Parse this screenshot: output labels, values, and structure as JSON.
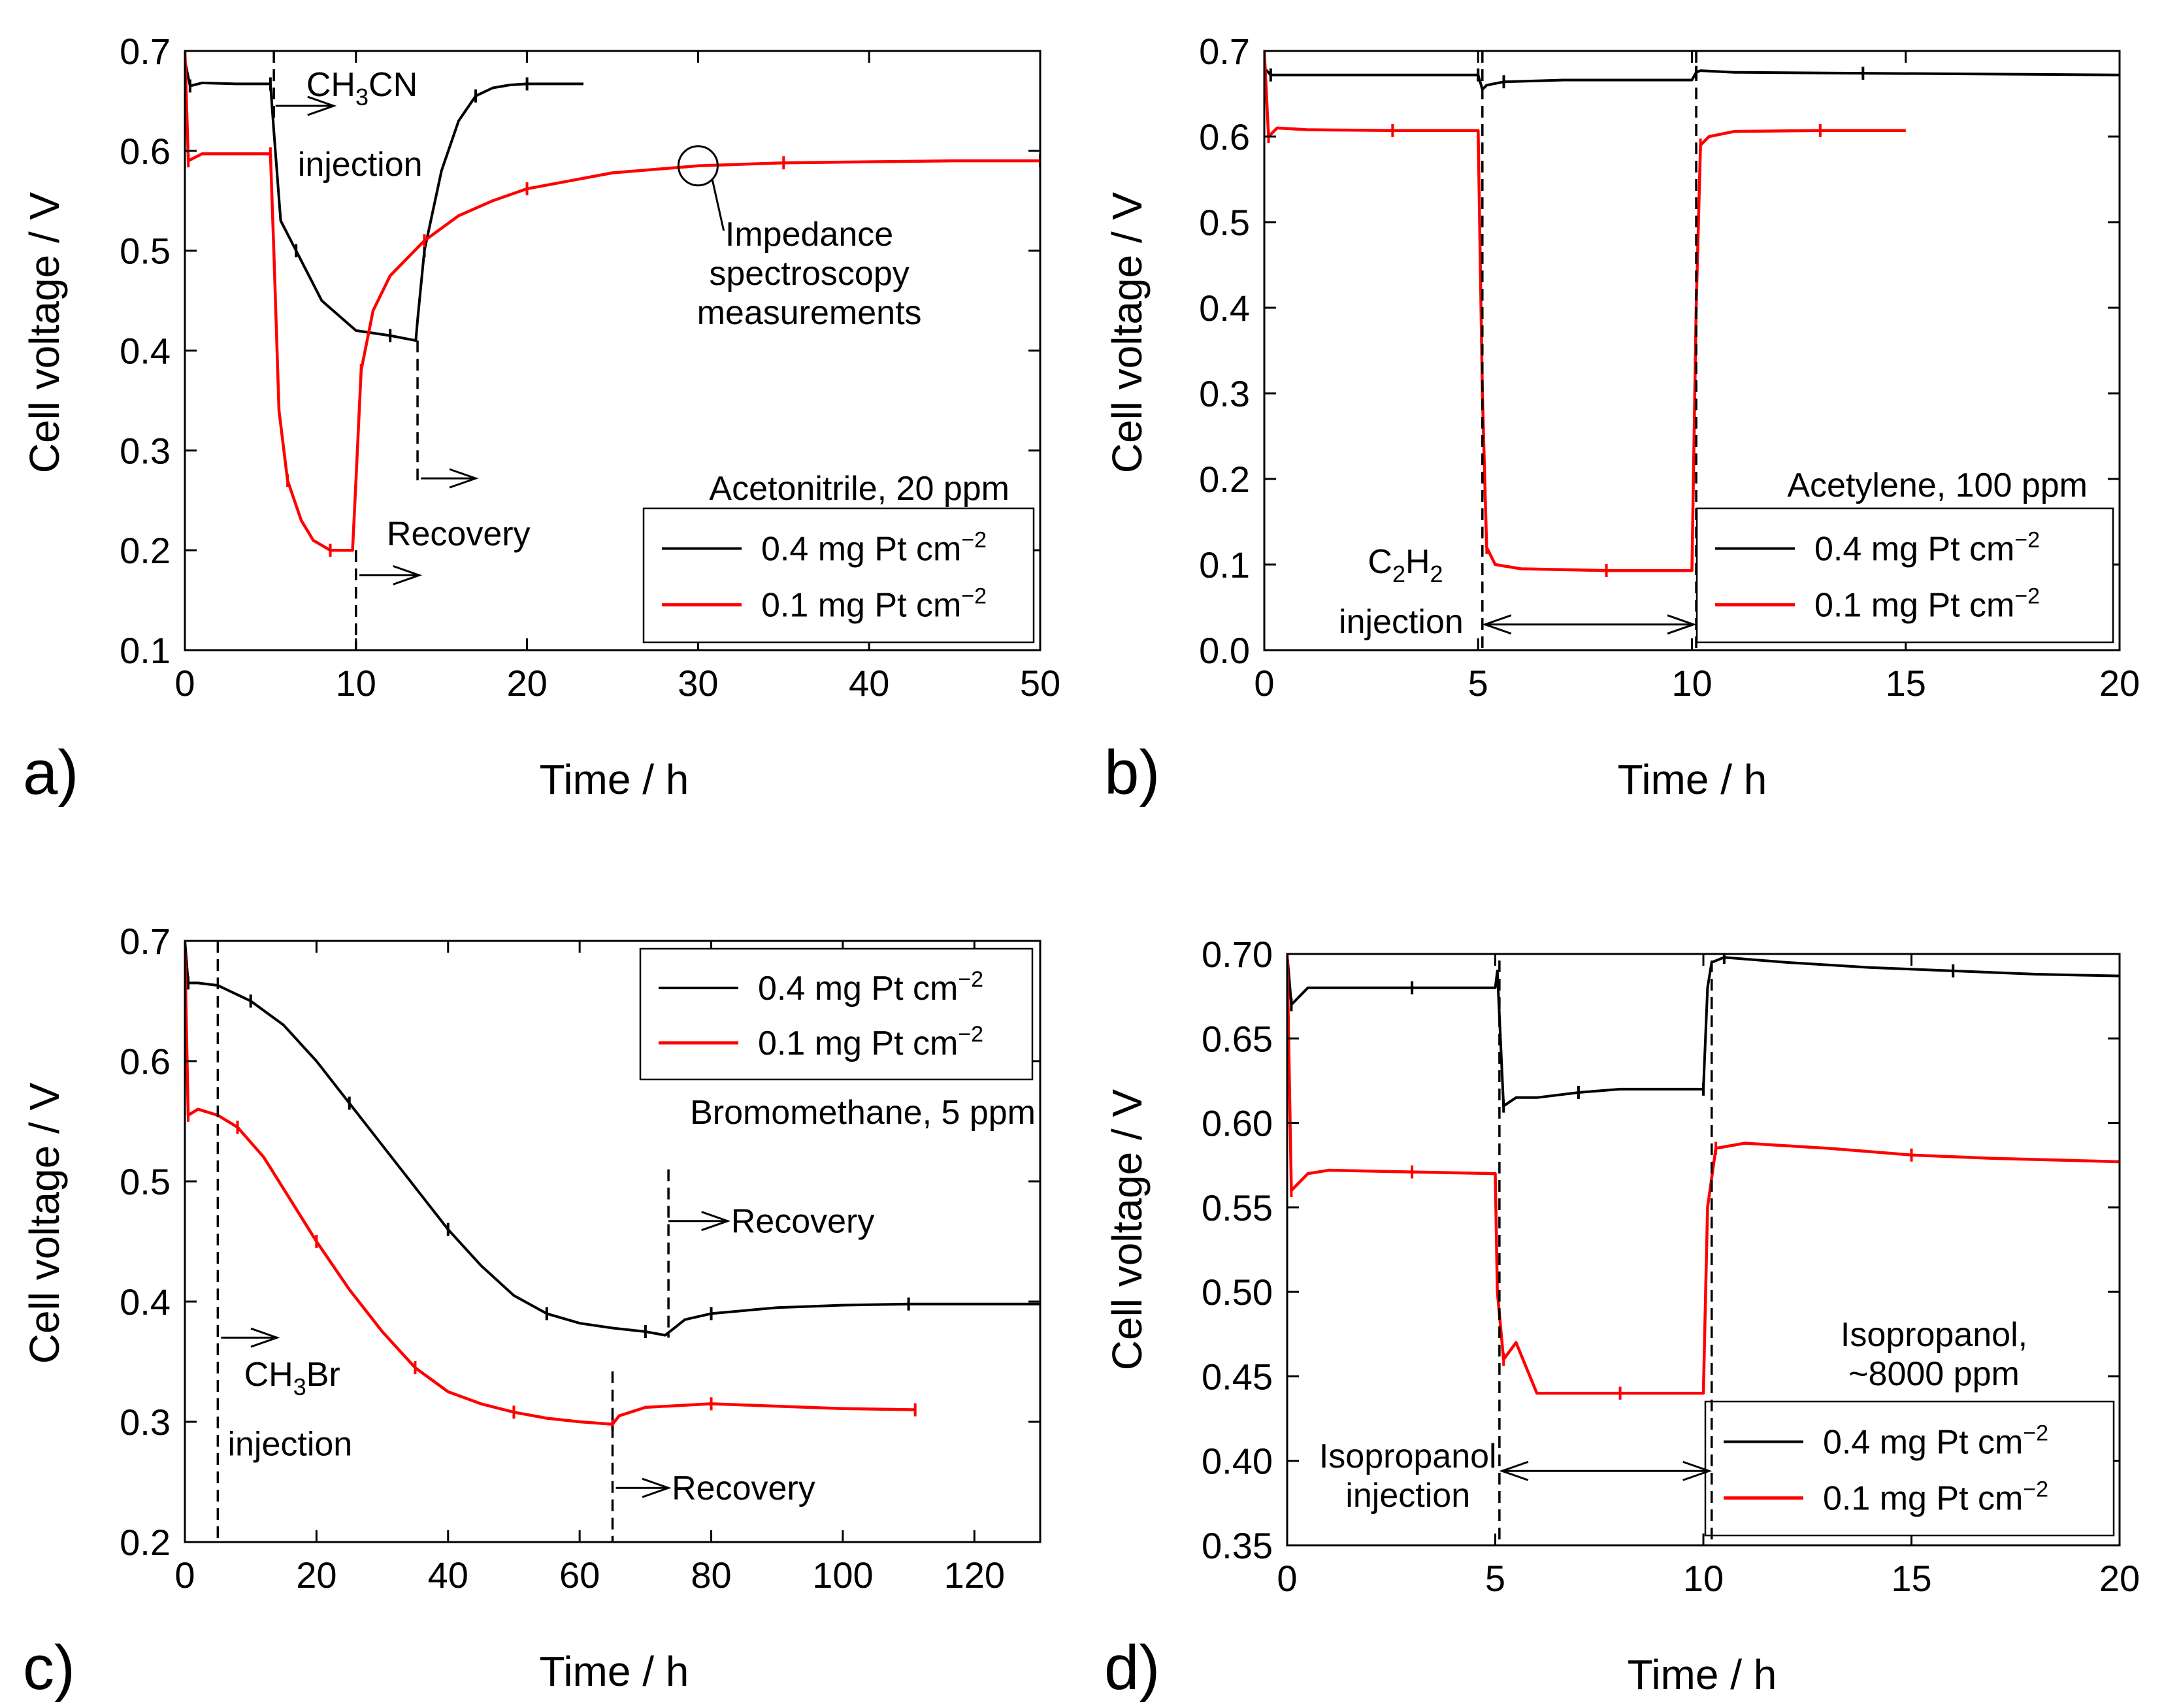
{
  "colors": {
    "black_series": "#000000",
    "red_series": "#ff0000"
  },
  "chart_data": [
    {
      "type": "line",
      "panel": "a)",
      "xlabel": "Time / h",
      "ylabel": "Cell voltage / V",
      "xlim": [
        0,
        50
      ],
      "ylim": [
        0.1,
        0.7
      ],
      "xticks": [
        0,
        10,
        20,
        30,
        40,
        50
      ],
      "xtick_labels": [
        "0",
        "10",
        "20",
        "30",
        "40",
        "50"
      ],
      "yticks": [
        0.1,
        0.2,
        0.3,
        0.4,
        0.5,
        0.6,
        0.7
      ],
      "ytick_labels": [
        "0.1",
        "0.2",
        "0.3",
        "0.4",
        "0.5",
        "0.6",
        "0.7"
      ],
      "title": "Acetonitrile, 20 ppm",
      "legend": {
        "position": "bottom-right",
        "entries": [
          {
            "main": "0.4 mg Pt cm",
            "sup": "−2",
            "color": "#000000"
          },
          {
            "main": "0.1 mg Pt cm",
            "sup": "−2",
            "color": "#ff0000"
          }
        ]
      },
      "series": [
        {
          "name": "0.4 mg Pt cm−2",
          "color": "#000000",
          "x": [
            0,
            0.3,
            1,
            3,
            5,
            5.2,
            5.6,
            6.5,
            8,
            10,
            12,
            13.5,
            13.6,
            14,
            15,
            16,
            17,
            18,
            19,
            20,
            22,
            23.3
          ],
          "y": [
            0.69,
            0.665,
            0.668,
            0.667,
            0.667,
            0.62,
            0.53,
            0.5,
            0.45,
            0.42,
            0.415,
            0.41,
            0.43,
            0.5,
            0.58,
            0.63,
            0.655,
            0.663,
            0.666,
            0.667,
            0.667,
            0.667
          ]
        },
        {
          "name": "0.1 mg Pt cm−2",
          "color": "#ff0000",
          "x": [
            0,
            0.2,
            1,
            3,
            5,
            5.2,
            5.5,
            6,
            6.8,
            7.5,
            8.5,
            9.8,
            10,
            10.3,
            11,
            12,
            14,
            16,
            18,
            20,
            25,
            30,
            35,
            40,
            45,
            50
          ],
          "y": [
            0.7,
            0.59,
            0.597,
            0.597,
            0.597,
            0.5,
            0.34,
            0.27,
            0.23,
            0.21,
            0.2,
            0.2,
            0.27,
            0.38,
            0.44,
            0.475,
            0.51,
            0.535,
            0.55,
            0.562,
            0.578,
            0.585,
            0.588,
            0.589,
            0.59,
            0.59
          ]
        }
      ],
      "annotations": {
        "injection_sub": "3",
        "injection_pre": "CH",
        "injection_post": "CN",
        "injection_word": "injection",
        "recovery": "Recovery",
        "impedance_lines": [
          "Impedance",
          "spectroscopy",
          "measurements"
        ]
      }
    },
    {
      "type": "line",
      "panel": "b)",
      "xlabel": "Time / h",
      "ylabel": "Cell voltage / V",
      "xlim": [
        0,
        20
      ],
      "ylim": [
        0.0,
        0.7
      ],
      "xticks": [
        0,
        5,
        10,
        15,
        20
      ],
      "xtick_labels": [
        "0",
        "5",
        "10",
        "15",
        "20"
      ],
      "yticks": [
        0.0,
        0.1,
        0.2,
        0.3,
        0.4,
        0.5,
        0.6,
        0.7
      ],
      "ytick_labels": [
        "0.0",
        "0.1",
        "0.2",
        "0.3",
        "0.4",
        "0.5",
        "0.6",
        "0.7"
      ],
      "title": "Acetylene, 100 ppm",
      "legend": {
        "position": "bottom-right",
        "entries": [
          {
            "main": "0.4 mg Pt cm",
            "sup": "−2",
            "color": "#000000"
          },
          {
            "main": "0.1 mg Pt cm",
            "sup": "−2",
            "color": "#ff0000"
          }
        ]
      },
      "series": [
        {
          "name": "0.4 mg Pt cm−2",
          "color": "#000000",
          "x": [
            0,
            0.15,
            1,
            3,
            5,
            5.1,
            5.2,
            5.6,
            7,
            10,
            10.1,
            10.2,
            11,
            14,
            17,
            20
          ],
          "y": [
            0.68,
            0.672,
            0.672,
            0.672,
            0.672,
            0.655,
            0.66,
            0.664,
            0.666,
            0.666,
            0.675,
            0.677,
            0.675,
            0.674,
            0.673,
            0.672
          ]
        },
        {
          "name": "0.1 mg Pt cm−2",
          "color": "#ff0000",
          "x": [
            0,
            0.1,
            0.3,
            1,
            3,
            5,
            5.1,
            5.2,
            5.4,
            6,
            8,
            10,
            10.1,
            10.2,
            10.4,
            11,
            13,
            15
          ],
          "y": [
            0.7,
            0.6,
            0.61,
            0.608,
            0.607,
            0.607,
            0.3,
            0.12,
            0.1,
            0.095,
            0.093,
            0.093,
            0.4,
            0.59,
            0.6,
            0.606,
            0.607,
            0.607
          ]
        }
      ],
      "annotations": {
        "injection_pre": "C",
        "injection_sub1": "2",
        "injection_mid": "H",
        "injection_sub2": "2",
        "injection_word": "injection"
      }
    },
    {
      "type": "line",
      "panel": "c)",
      "xlabel": "Time / h",
      "ylabel": "Cell voltage / V",
      "xlim": [
        0,
        130
      ],
      "ylim": [
        0.2,
        0.7
      ],
      "xticks": [
        0,
        20,
        40,
        60,
        80,
        100,
        120
      ],
      "xtick_labels": [
        "0",
        "20",
        "40",
        "60",
        "80",
        "100",
        "120"
      ],
      "yticks": [
        0.2,
        0.3,
        0.4,
        0.5,
        0.6,
        0.7
      ],
      "ytick_labels": [
        "0.2",
        "0.3",
        "0.4",
        "0.5",
        "0.6",
        "0.7"
      ],
      "title": "Bromomethane, 5 ppm",
      "legend": {
        "position": "top-right",
        "entries": [
          {
            "main": "0.4 mg Pt cm",
            "sup": "−2",
            "color": "#000000"
          },
          {
            "main": "0.1 mg Pt cm",
            "sup": "−2",
            "color": "#ff0000"
          }
        ]
      },
      "series": [
        {
          "name": "0.4 mg Pt cm−2",
          "color": "#000000",
          "x": [
            0,
            0.5,
            2,
            5,
            10,
            15,
            20,
            25,
            30,
            35,
            40,
            45,
            50,
            55,
            60,
            65,
            70,
            73,
            76,
            80,
            90,
            100,
            110,
            120,
            130
          ],
          "y": [
            0.7,
            0.665,
            0.665,
            0.663,
            0.65,
            0.63,
            0.6,
            0.565,
            0.53,
            0.495,
            0.46,
            0.43,
            0.405,
            0.39,
            0.382,
            0.378,
            0.375,
            0.372,
            0.385,
            0.39,
            0.395,
            0.397,
            0.398,
            0.398,
            0.398
          ]
        },
        {
          "name": "0.1 mg Pt cm−2",
          "color": "#ff0000",
          "x": [
            0,
            0.5,
            2,
            5,
            8,
            12,
            16,
            20,
            25,
            30,
            35,
            40,
            45,
            50,
            55,
            60,
            65,
            66,
            70,
            80,
            90,
            100,
            111
          ],
          "y": [
            0.69,
            0.555,
            0.56,
            0.555,
            0.545,
            0.52,
            0.485,
            0.45,
            0.41,
            0.375,
            0.345,
            0.325,
            0.315,
            0.308,
            0.303,
            0.3,
            0.298,
            0.305,
            0.312,
            0.315,
            0.313,
            0.311,
            0.31
          ]
        }
      ],
      "annotations": {
        "injection_pre": "CH",
        "injection_sub": "3",
        "injection_post": "Br",
        "injection_word": "injection",
        "recovery1": "Recovery",
        "recovery2": "Recovery"
      }
    },
    {
      "type": "line",
      "panel": "d)",
      "xlabel": "Time / h",
      "ylabel": "Cell voltage / V",
      "xlim": [
        0,
        20
      ],
      "ylim": [
        0.35,
        0.7
      ],
      "xticks": [
        0,
        5,
        10,
        15,
        20
      ],
      "xtick_labels": [
        "0",
        "5",
        "10",
        "15",
        "20"
      ],
      "yticks": [
        0.35,
        0.4,
        0.45,
        0.5,
        0.55,
        0.6,
        0.65,
        0.7
      ],
      "ytick_labels": [
        "0.35",
        "0.40",
        "0.45",
        "0.50",
        "0.55",
        "0.60",
        "0.65",
        "0.70"
      ],
      "title_lines": [
        "Isopropanol,",
        "~8000 ppm"
      ],
      "legend": {
        "position": "bottom-right",
        "entries": [
          {
            "main": "0.4 mg Pt cm",
            "sup": "−2",
            "color": "#000000"
          },
          {
            "main": "0.1 mg Pt cm",
            "sup": "−2",
            "color": "#ff0000"
          }
        ]
      },
      "series": [
        {
          "name": "0.4 mg Pt cm−2",
          "color": "#000000",
          "x": [
            0,
            0.1,
            0.5,
            1,
            3,
            5,
            5.05,
            5.2,
            5.5,
            6,
            7,
            8,
            9,
            10,
            10.1,
            10.2,
            10.5,
            12,
            14,
            16,
            18,
            20
          ],
          "y": [
            0.7,
            0.67,
            0.68,
            0.68,
            0.68,
            0.68,
            0.69,
            0.61,
            0.615,
            0.615,
            0.618,
            0.62,
            0.62,
            0.62,
            0.68,
            0.695,
            0.698,
            0.695,
            0.692,
            0.69,
            0.688,
            0.687
          ]
        },
        {
          "name": "0.1 mg Pt cm−2",
          "color": "#ff0000",
          "x": [
            0,
            0.1,
            0.5,
            1,
            3,
            5,
            5.05,
            5.2,
            5.5,
            6,
            8,
            10,
            10.1,
            10.3,
            11,
            13,
            15,
            17,
            20
          ],
          "y": [
            0.7,
            0.56,
            0.57,
            0.572,
            0.571,
            0.57,
            0.5,
            0.46,
            0.47,
            0.44,
            0.44,
            0.44,
            0.55,
            0.585,
            0.588,
            0.585,
            0.581,
            0.579,
            0.577
          ]
        }
      ],
      "annotations": {
        "injection_lines": [
          "Isopropanol",
          "injection"
        ]
      }
    }
  ]
}
